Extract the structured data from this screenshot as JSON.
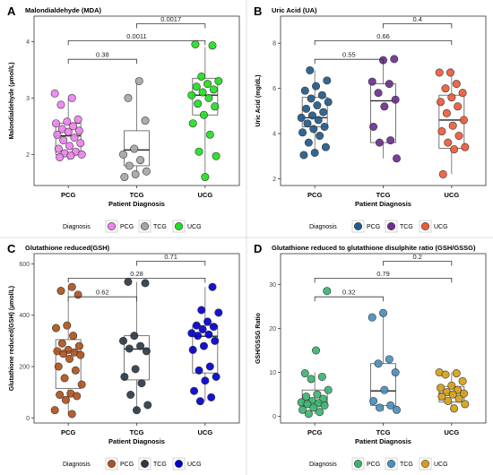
{
  "legend_title": "Diagnosis",
  "x_axis_title": "Patient Diagnosis",
  "chart_data": [
    {
      "type": "box-jitter",
      "letter": "A",
      "title": "Malondialdehyde (MDA)",
      "xlabel": "Patient Diagnosis",
      "ylabel": "Malondialdehyde (µmol/L)",
      "categories": [
        "PCG",
        "TCG",
        "UCG"
      ],
      "colors": [
        "#EE82EE",
        "#A6A6A6",
        "#22DD22"
      ],
      "ylim": [
        1.45,
        4.45
      ],
      "yticks": [
        2,
        3,
        4
      ],
      "boxes": [
        {
          "min": 1.9,
          "q1": 2.0,
          "median": 2.33,
          "q3": 2.55,
          "max": 3.0
        },
        {
          "min": 1.68,
          "q1": 1.8,
          "median": 2.08,
          "q3": 2.42,
          "max": 3.3
        },
        {
          "min": 1.63,
          "q1": 2.7,
          "median": 3.05,
          "q3": 3.35,
          "max": 3.9
        }
      ],
      "points": [
        [
          3.08,
          3.0,
          2.88,
          2.62,
          2.58,
          2.55,
          2.5,
          2.45,
          2.42,
          2.4,
          2.35,
          2.3,
          2.25,
          2.2,
          2.15,
          2.1,
          2.05,
          2.02,
          2.0,
          1.98,
          1.95
        ],
        [
          3.3,
          3.0,
          2.6,
          2.1,
          2.0,
          1.9,
          1.8,
          1.7,
          1.65,
          1.6
        ],
        [
          3.95,
          3.93,
          3.38,
          3.3,
          3.25,
          3.2,
          3.15,
          3.1,
          3.05,
          3.0,
          2.9,
          2.85,
          2.7,
          2.55,
          2.35,
          2.05,
          1.97,
          1.6
        ]
      ],
      "comparisons": [
        {
          "label": "0.38",
          "from": 0,
          "to": 1,
          "level": 0
        },
        {
          "label": "0.0011",
          "from": 0,
          "to": 2,
          "level": 1
        },
        {
          "label": "0.0017",
          "from": 1,
          "to": 2,
          "level": 2
        }
      ]
    },
    {
      "type": "box-jitter",
      "letter": "B",
      "title": "Uric Acid (UA)",
      "xlabel": "Patient Diagnosis",
      "ylabel": "Uric Acid (mg/dL)",
      "categories": [
        "PCG",
        "TCG",
        "UCG"
      ],
      "colors": [
        "#215A8A",
        "#6B3090",
        "#F05A3A"
      ],
      "ylim": [
        1.7,
        9.2
      ],
      "yticks": [
        2,
        4,
        6,
        8
      ],
      "boxes": [
        {
          "min": 3.1,
          "q1": 4.3,
          "median": 4.7,
          "q3": 5.6,
          "max": 6.8
        },
        {
          "min": 2.9,
          "q1": 3.6,
          "median": 5.45,
          "q3": 6.2,
          "max": 7.3
        },
        {
          "min": 2.2,
          "q1": 3.35,
          "median": 4.6,
          "q3": 5.7,
          "max": 6.9
        }
      ],
      "points": [
        [
          6.8,
          6.35,
          6.1,
          5.9,
          5.7,
          5.55,
          5.4,
          5.25,
          5.1,
          4.95,
          4.8,
          4.7,
          4.6,
          4.45,
          4.3,
          4.2,
          4.05,
          3.9,
          3.6,
          3.4,
          3.15,
          3.05
        ],
        [
          7.3,
          7.25,
          6.3,
          6.2,
          5.8,
          5.5,
          5.2,
          4.3,
          3.7,
          3.6,
          2.9
        ],
        [
          6.7,
          6.7,
          6.2,
          6.0,
          5.8,
          5.6,
          5.4,
          5.2,
          4.9,
          4.6,
          4.35,
          4.1,
          3.9,
          3.6,
          3.4,
          3.3,
          2.2
        ]
      ],
      "comparisons": [
        {
          "label": "0.55",
          "from": 0,
          "to": 1,
          "level": 0
        },
        {
          "label": "0.66",
          "from": 0,
          "to": 2,
          "level": 1
        },
        {
          "label": "0.4",
          "from": 1,
          "to": 2,
          "level": 2
        }
      ]
    },
    {
      "type": "box-jitter",
      "letter": "C",
      "title": "Glutathione reduced(GSH)",
      "xlabel": "Patient Diagnosis",
      "ylabel": "Glutathione reduced(GSH) (µmol/L)",
      "categories": [
        "PCG",
        "TCG",
        "UCG"
      ],
      "colors": [
        "#B0521C",
        "#2C3947",
        "#0000CC"
      ],
      "ylim": [
        -20,
        640
      ],
      "yticks": [
        0,
        200,
        400,
        600
      ],
      "boxes": [
        {
          "min": 15,
          "q1": 115,
          "median": 258,
          "q3": 305,
          "max": 510
        },
        {
          "min": 30,
          "q1": 148,
          "median": 268,
          "q3": 320,
          "max": 530
        },
        {
          "min": 65,
          "q1": 175,
          "median": 318,
          "q3": 360,
          "max": 510
        }
      ],
      "points": [
        [
          510,
          495,
          480,
          360,
          350,
          320,
          290,
          280,
          265,
          260,
          255,
          250,
          245,
          230,
          200,
          185,
          155,
          130,
          95,
          90,
          85,
          70,
          30,
          15
        ],
        [
          530,
          525,
          320,
          300,
          280,
          270,
          260,
          190,
          160,
          135,
          90,
          50,
          30
        ],
        [
          510,
          420,
          410,
          375,
          360,
          355,
          345,
          330,
          325,
          320,
          300,
          280,
          265,
          200,
          185,
          160,
          145,
          105,
          80,
          65
        ]
      ],
      "comparisons": [
        {
          "label": "0.62",
          "from": 0,
          "to": 1,
          "level": 0
        },
        {
          "label": "0.28",
          "from": 0,
          "to": 2,
          "level": 1
        },
        {
          "label": "0.71",
          "from": 1,
          "to": 2,
          "level": 2
        }
      ]
    },
    {
      "type": "box-jitter",
      "letter": "D",
      "title": "Glutathione reduced to glutathione disulphite ratio (GSH/GSSG)",
      "xlabel": "Patient Diagnosis",
      "ylabel": "GSH/GSSG Ratio",
      "categories": [
        "PCG",
        "TCG",
        "UCG"
      ],
      "colors": [
        "#3CB371",
        "#4A90BE",
        "#D4A017"
      ],
      "ylim": [
        -1.5,
        37
      ],
      "yticks": [
        0,
        10,
        20,
        30
      ],
      "boxes": [
        {
          "min": 0.5,
          "q1": 2.5,
          "median": 3.2,
          "q3": 6.0,
          "max": 10
        },
        {
          "min": 1.2,
          "q1": 2.5,
          "median": 5.8,
          "q3": 12,
          "max": 23.5
        },
        {
          "min": 1.5,
          "q1": 3.3,
          "median": 5.3,
          "q3": 6.8,
          "max": 10
        }
      ],
      "points": [
        [
          28.5,
          15.0,
          9.8,
          9.0,
          8.5,
          6.0,
          5.0,
          4.5,
          4.0,
          3.5,
          3.2,
          3.0,
          2.8,
          2.5,
          2.0,
          1.5,
          1.0,
          0.6
        ],
        [
          23.5,
          22.5,
          13.0,
          12.0,
          10.0,
          6.0,
          3.5,
          2.5,
          2.0,
          1.5
        ],
        [
          10.0,
          9.8,
          9.5,
          8.0,
          7.0,
          6.5,
          6.0,
          5.5,
          5.2,
          5.0,
          4.5,
          4.0,
          3.5,
          2.8,
          1.8
        ]
      ],
      "comparisons": [
        {
          "label": "0.32",
          "from": 0,
          "to": 1,
          "level": 0
        },
        {
          "label": "0.79",
          "from": 0,
          "to": 2,
          "level": 1
        },
        {
          "label": "0.2",
          "from": 1,
          "to": 2,
          "level": 2
        }
      ]
    }
  ]
}
